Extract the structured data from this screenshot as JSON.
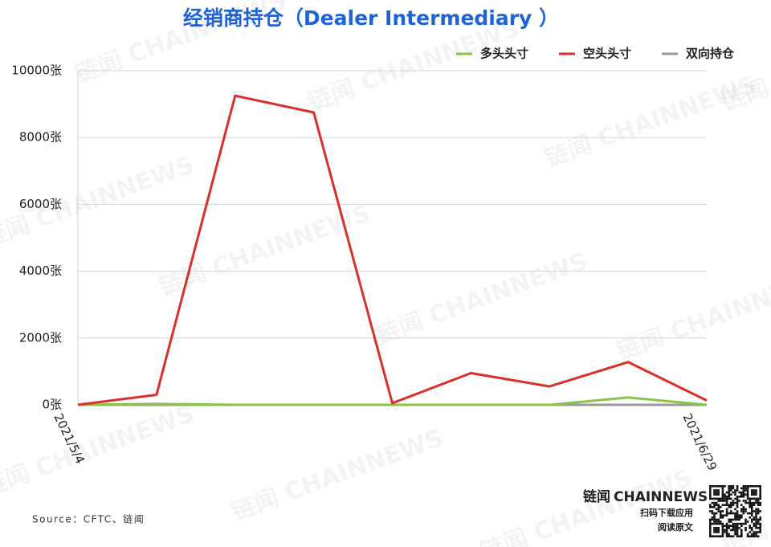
{
  "chart_data": {
    "type": "line",
    "title": "经销商持仓（Dealer Intermediary ）",
    "categories": [
      "2021/5/4",
      null,
      null,
      null,
      null,
      null,
      null,
      null,
      "2021/6/29"
    ],
    "series": [
      {
        "name": "多头头寸",
        "color": "#8bc34a",
        "values": [
          0,
          30,
          0,
          0,
          0,
          0,
          0,
          220,
          0
        ]
      },
      {
        "name": "空头头寸",
        "color": "#d9302c",
        "values": [
          0,
          300,
          9250,
          8750,
          50,
          950,
          550,
          1280,
          130
        ]
      },
      {
        "name": "双向持仓",
        "color": "#999999",
        "values": [
          0,
          0,
          0,
          0,
          0,
          0,
          0,
          0,
          0
        ]
      }
    ],
    "ylim": [
      0,
      10000
    ],
    "yticks": [
      {
        "value": 0,
        "label": "0张"
      },
      {
        "value": 2000,
        "label": "2000张"
      },
      {
        "value": 4000,
        "label": "4000张"
      },
      {
        "value": 6000,
        "label": "6000张"
      },
      {
        "value": 8000,
        "label": "8000张"
      },
      {
        "value": 10000,
        "label": "10000张"
      }
    ],
    "grid": true,
    "legend": "top-right",
    "source": "Source：CFTC、链闻",
    "watermark": "链闻 CHAINNEWS",
    "brand": {
      "name": "链闻",
      "latin": "CHAINNEWS",
      "line1": "扫码下载应用",
      "line2": "阅读原文"
    }
  }
}
